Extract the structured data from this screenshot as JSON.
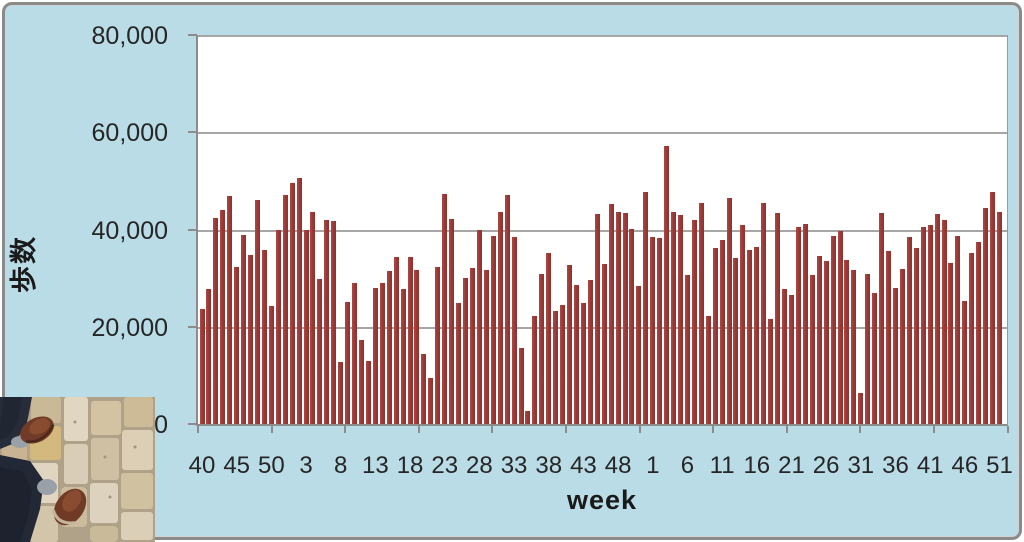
{
  "chart_data": {
    "type": "bar",
    "title": "",
    "xlabel": "week",
    "ylabel": "歩数",
    "ylim": [
      0,
      80000
    ],
    "grid": true,
    "y_tick_labels": [
      "80,000",
      "60,000",
      "40,000",
      "20,000",
      "0"
    ],
    "x_tick_labels": [
      "40",
      "45",
      "50",
      "3",
      "8",
      "13",
      "18",
      "23",
      "28",
      "33",
      "38",
      "43",
      "48",
      "1",
      "6",
      "11",
      "16",
      "21",
      "26",
      "31",
      "36",
      "41",
      "46",
      "51"
    ],
    "x_label_interval": 5,
    "categories": [
      40,
      41,
      42,
      43,
      44,
      45,
      46,
      47,
      48,
      49,
      50,
      51,
      52,
      1,
      2,
      3,
      4,
      5,
      6,
      7,
      8,
      9,
      10,
      11,
      12,
      13,
      14,
      15,
      16,
      17,
      18,
      19,
      20,
      21,
      22,
      23,
      24,
      25,
      26,
      27,
      28,
      29,
      30,
      31,
      32,
      33,
      34,
      35,
      36,
      37,
      38,
      39,
      40,
      41,
      42,
      43,
      44,
      45,
      46,
      47,
      48,
      49,
      50,
      51,
      52,
      1,
      2,
      3,
      4,
      5,
      6,
      7,
      8,
      9,
      10,
      11,
      12,
      13,
      14,
      15,
      16,
      17,
      18,
      19,
      20,
      21,
      22,
      23,
      24,
      25,
      26,
      27,
      28,
      29,
      30,
      31,
      32,
      33,
      34,
      35,
      36,
      37,
      38,
      39,
      40,
      41,
      42,
      43,
      44,
      45,
      46,
      47,
      48,
      49,
      50,
      51
    ],
    "values": [
      23600,
      27800,
      42300,
      44000,
      46800,
      32300,
      38800,
      34800,
      46000,
      35800,
      24200,
      39800,
      47000,
      49600,
      50500,
      39900,
      43600,
      29800,
      42000,
      41700,
      12700,
      25000,
      29000,
      17200,
      13000,
      28000,
      29000,
      31500,
      34400,
      27800,
      34300,
      31700,
      14400,
      9500,
      32200,
      47300,
      42200,
      24800,
      30000,
      32000,
      39800,
      31700,
      38700,
      43700,
      47100,
      38400,
      15700,
      2600,
      22200,
      30800,
      35100,
      23300,
      24500,
      32600,
      28500,
      24900,
      29600,
      43200,
      32900,
      45200,
      43500,
      43400,
      40100,
      28300,
      47700,
      38500,
      38200,
      57200,
      43700,
      42900,
      30700,
      41900,
      45400,
      22200,
      36100,
      37800,
      46400,
      34100,
      41000,
      35800,
      36400,
      45400,
      21600,
      43300,
      27700,
      26500,
      40600,
      41200,
      30600,
      34500,
      33600,
      38700,
      39700,
      33800,
      31700,
      6300,
      30900,
      27000,
      43400,
      35500,
      28000,
      31900,
      38500,
      36100,
      40600,
      41000,
      43100,
      42000,
      33200,
      38700,
      25400,
      35100,
      37400,
      44500,
      47800,
      43700
    ],
    "colors": {
      "bar": "#9c3a37",
      "chart_background": "#badce7",
      "plot_background": "#ffffff",
      "gridline": "#a6a6a6",
      "axis_line": "#8c8c8c",
      "text": "#262626"
    },
    "legend": "none"
  },
  "photo": {
    "alt": "first-person photo of feet in brown leather shoes and dark jeans walking on beige cobblestone pavement"
  }
}
